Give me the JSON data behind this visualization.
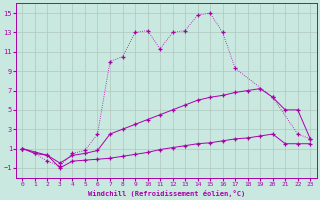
{
  "title": "",
  "xlabel": "Windchill (Refroidissement éolien,°C)",
  "ylabel": "",
  "xlim": [
    -0.5,
    23.5
  ],
  "ylim": [
    -2,
    16
  ],
  "yticks": [
    -1,
    1,
    3,
    5,
    7,
    9,
    11,
    13,
    15
  ],
  "xticks": [
    0,
    1,
    2,
    3,
    4,
    5,
    6,
    7,
    8,
    9,
    10,
    11,
    12,
    13,
    14,
    15,
    16,
    17,
    18,
    19,
    20,
    21,
    22,
    23
  ],
  "background_color": "#c8e8e0",
  "grid_color": "#b0c8c0",
  "line_color": "#aa00aa",
  "curve1_x": [
    0,
    1,
    2,
    3,
    4,
    5,
    6,
    7,
    8,
    9,
    10,
    11,
    12,
    13,
    14,
    15,
    16,
    17,
    20,
    22,
    23
  ],
  "curve1_y": [
    1,
    0.5,
    -0.3,
    -0.8,
    0.5,
    0.8,
    2.5,
    10.0,
    10.5,
    13.0,
    13.2,
    11.3,
    13.0,
    13.2,
    14.8,
    15.0,
    13.0,
    9.3,
    6.3,
    2.5,
    2.0
  ],
  "curve2_x": [
    0,
    2,
    3,
    4,
    5,
    6,
    7,
    8,
    9,
    10,
    11,
    12,
    13,
    14,
    15,
    16,
    17,
    18,
    19,
    20,
    21,
    22,
    23
  ],
  "curve2_y": [
    1,
    0.3,
    -0.5,
    0.3,
    0.5,
    0.8,
    2.5,
    3.0,
    3.5,
    4.0,
    4.5,
    5.0,
    5.5,
    6.0,
    6.3,
    6.5,
    6.8,
    7.0,
    7.2,
    6.3,
    5.0,
    5.0,
    2.0
  ],
  "curve3_x": [
    0,
    1,
    2,
    3,
    4,
    5,
    6,
    7,
    8,
    9,
    10,
    11,
    12,
    13,
    14,
    15,
    16,
    17,
    18,
    19,
    20,
    21,
    22,
    23
  ],
  "curve3_y": [
    1,
    0.5,
    0.3,
    -1.0,
    -0.3,
    -0.2,
    -0.1,
    0.0,
    0.2,
    0.4,
    0.6,
    0.9,
    1.1,
    1.3,
    1.5,
    1.6,
    1.8,
    2.0,
    2.1,
    2.3,
    2.5,
    1.5,
    1.5,
    1.5
  ]
}
